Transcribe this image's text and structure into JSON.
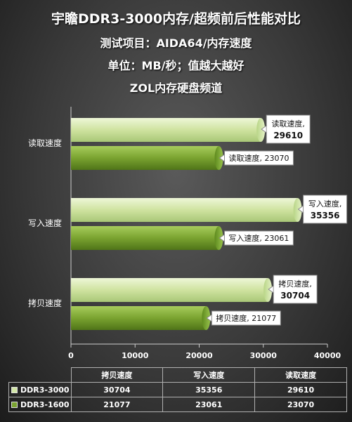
{
  "titles": {
    "main": "宇瞻DDR3-3000内存/超频前后性能对比",
    "sub1": "测试项目：AIDA64/内存速度",
    "sub2": "单位：MB/秒；值越大越好",
    "sub3": "ZOL内存硬盘频道"
  },
  "colors": {
    "ddr3_3000": "#d2e6a6",
    "ddr3_1600": "#7aa330"
  },
  "chart_data": {
    "type": "bar",
    "orientation": "horizontal",
    "categories": [
      "读取速度",
      "写入速度",
      "拷贝速度"
    ],
    "series": [
      {
        "name": "DDR3-3000",
        "values": [
          29610,
          35356,
          30704
        ]
      },
      {
        "name": "DDR3-1600",
        "values": [
          23070,
          23061,
          21077
        ]
      }
    ],
    "data_labels": {
      "DDR3-3000": [
        "读取速度,\n29610",
        "写入速度,\n35356",
        "拷贝速度,\n30704"
      ],
      "DDR3-1600": [
        "读取速度, 23070",
        "写入速度, 23061",
        "拷贝速度, 21077"
      ]
    },
    "x_ticks": [
      "0",
      "10000",
      "20000",
      "30000",
      "40000"
    ],
    "xlim": [
      0,
      40000
    ],
    "grid": false,
    "legend": "data table below chart"
  },
  "table": {
    "headers": [
      "拷贝速度",
      "写入速度",
      "读取速度"
    ],
    "rows": [
      {
        "label": "DDR3-3000",
        "values": [
          "30704",
          "35356",
          "29610"
        ]
      },
      {
        "label": "DDR3-1600",
        "values": [
          "21077",
          "23061",
          "23070"
        ]
      }
    ]
  }
}
